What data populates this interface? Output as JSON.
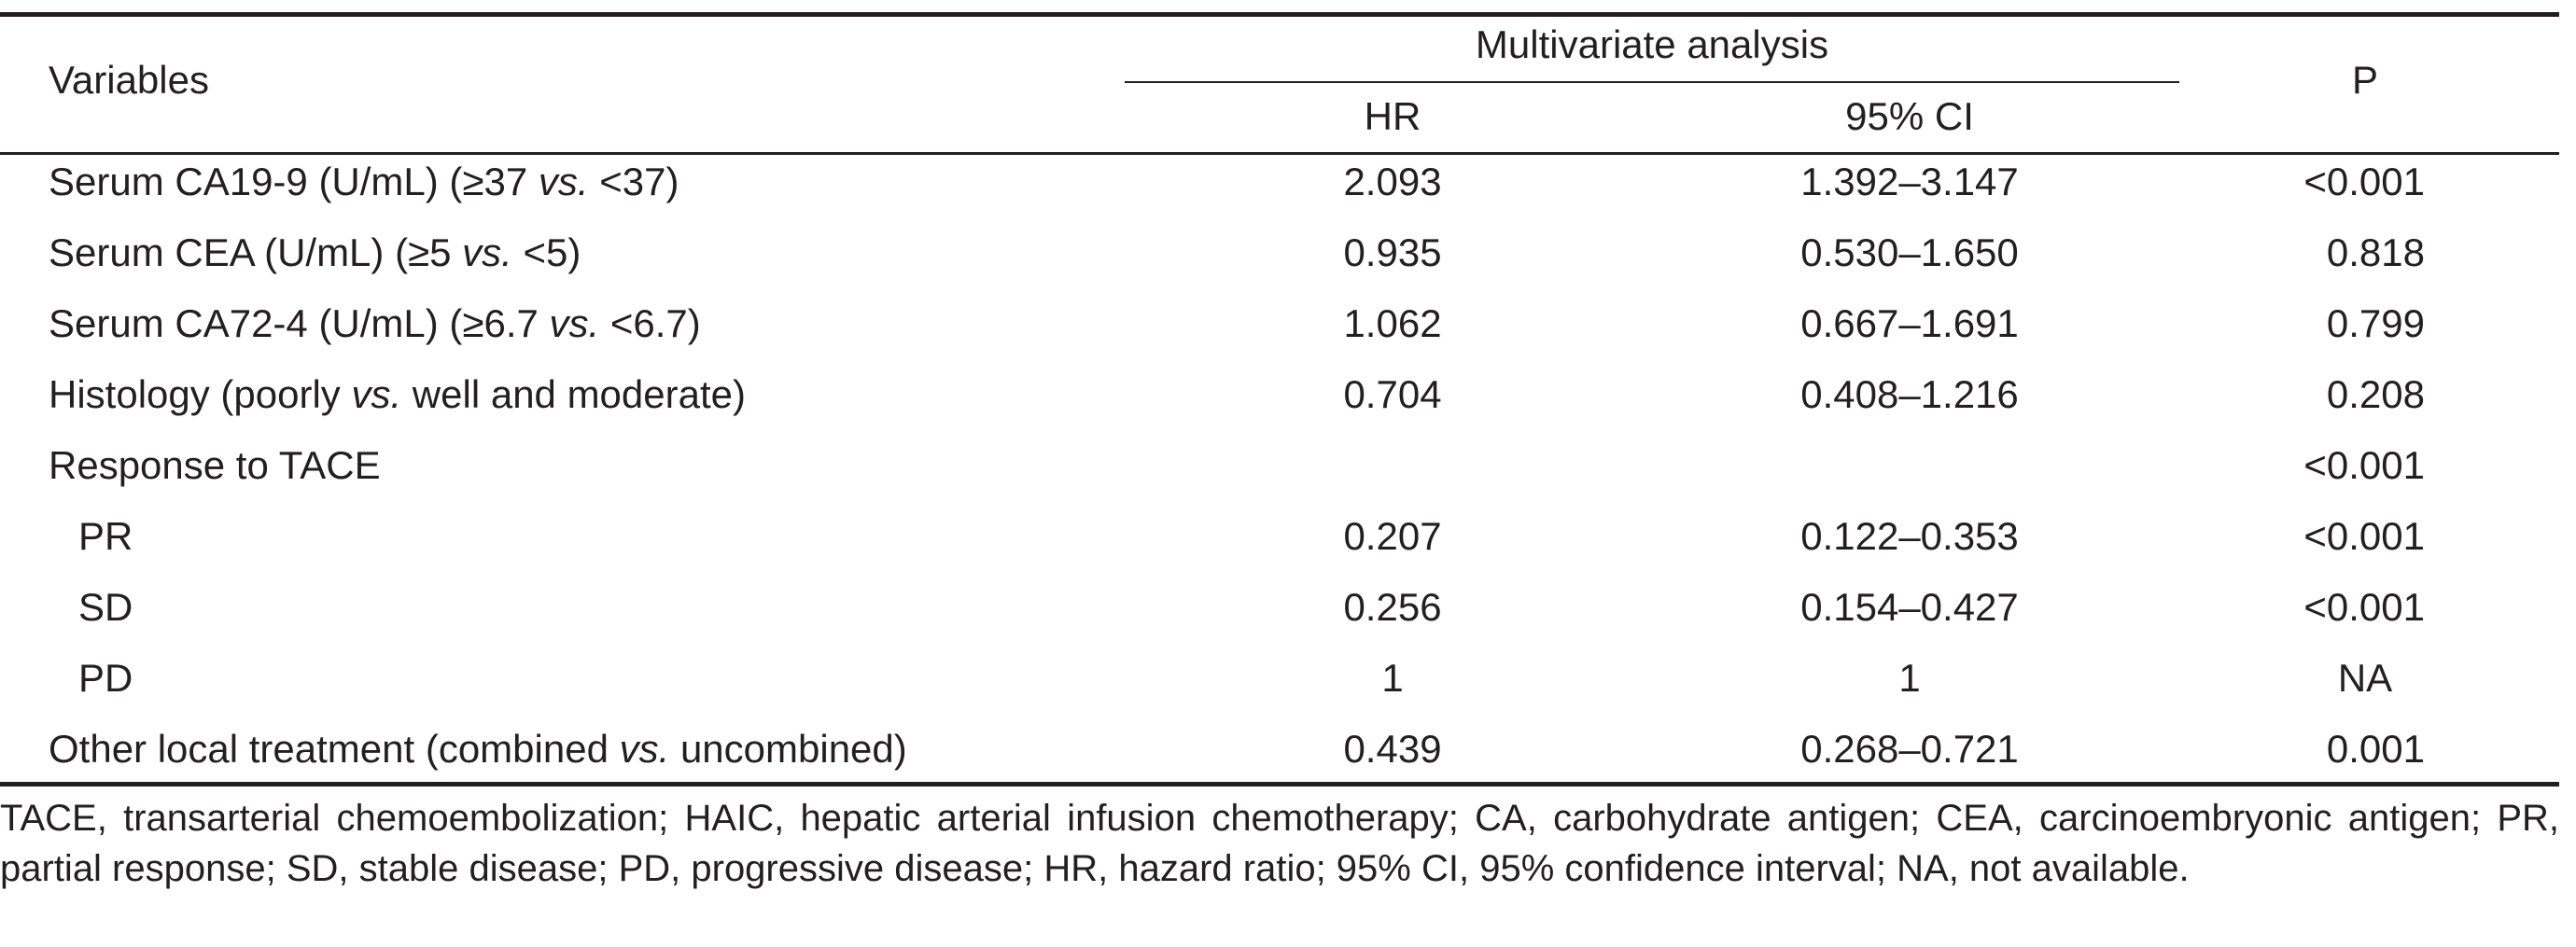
{
  "table": {
    "header": {
      "variables": "Variables",
      "group": "Multivariate analysis",
      "hr": "HR",
      "ci": "95% CI",
      "p": "P"
    },
    "rows": [
      {
        "pre": "Serum CA19-9 (U/mL) (≥37 ",
        "vs": "vs.",
        "post": " <37)",
        "hr": "2.093",
        "ci": "1.392–3.147",
        "p": "<0.001",
        "indent": false
      },
      {
        "pre": "Serum CEA (U/mL) (≥5 ",
        "vs": "vs.",
        "post": " <5)",
        "hr": "0.935",
        "ci": "0.530–1.650",
        "p": "0.818",
        "indent": false
      },
      {
        "pre": "Serum CA72-4 (U/mL) (≥6.7 ",
        "vs": "vs.",
        "post": " <6.7)",
        "hr": "1.062",
        "ci": "0.667–1.691",
        "p": "0.799",
        "indent": false
      },
      {
        "pre": "Histology (poorly ",
        "vs": "vs.",
        "post": " well and moderate)",
        "hr": "0.704",
        "ci": "0.408–1.216",
        "p": "0.208",
        "indent": false
      },
      {
        "pre": "Response to TACE",
        "vs": "",
        "post": "",
        "hr": "",
        "ci": "",
        "p": "<0.001",
        "indent": false
      },
      {
        "pre": "PR",
        "vs": "",
        "post": "",
        "hr": "0.207",
        "ci": "0.122–0.353",
        "p": "<0.001",
        "indent": true
      },
      {
        "pre": "SD",
        "vs": "",
        "post": "",
        "hr": "0.256",
        "ci": "0.154–0.427",
        "p": "<0.001",
        "indent": true
      },
      {
        "pre": "PD",
        "vs": "",
        "post": "",
        "hr": "1",
        "ci": "1",
        "p": "NA",
        "indent": true
      },
      {
        "pre": "Other local treatment (combined ",
        "vs": "vs.",
        "post": " uncombined)",
        "hr": "0.439",
        "ci": "0.268–0.721",
        "p": "0.001",
        "indent": false
      }
    ],
    "footnote": "TACE, transarterial chemoembolization; HAIC, hepatic arterial infusion chemotherapy; CA, carbohydrate antigen; CEA, carcinoembryonic antigen; PR, partial response; SD, stable disease; PD, progressive disease; HR, hazard ratio; 95% CI, 95% confidence interval; NA, not available."
  }
}
